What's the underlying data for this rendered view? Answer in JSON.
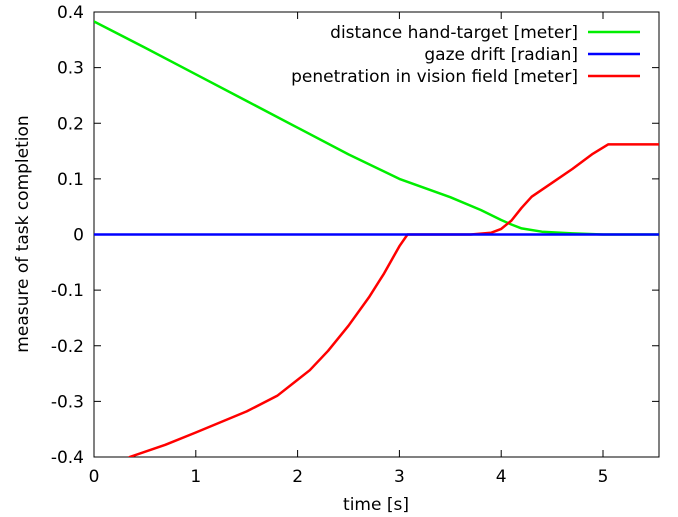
{
  "chart_data": {
    "type": "line",
    "title": "",
    "xlabel": "time [s]",
    "ylabel": "measure of task completion",
    "xlim": [
      0,
      5.55
    ],
    "ylim": [
      -0.4,
      0.4
    ],
    "xticks": [
      0,
      1,
      2,
      3,
      4,
      5
    ],
    "yticks": [
      -0.4,
      -0.3,
      -0.2,
      -0.1,
      0,
      0.1,
      0.2,
      0.3,
      0.4
    ],
    "xtick_labels": [
      "0",
      "1",
      "2",
      "3",
      "4",
      "5"
    ],
    "ytick_labels": [
      "-0.4",
      "-0.3",
      "-0.2",
      "-0.1",
      "0",
      "0.1",
      "0.2",
      "0.3",
      "0.4"
    ],
    "grid": false,
    "legend_position": "top-right",
    "series": [
      {
        "name": "distance hand-target [meter]",
        "color": "#00ee00",
        "points": [
          [
            0,
            0.383
          ],
          [
            0.5,
            0.336
          ],
          [
            1.0,
            0.288
          ],
          [
            1.5,
            0.24
          ],
          [
            2.0,
            0.192
          ],
          [
            2.5,
            0.144
          ],
          [
            3.0,
            0.1
          ],
          [
            3.5,
            0.067
          ],
          [
            3.8,
            0.044
          ],
          [
            4.0,
            0.026
          ],
          [
            4.1,
            0.018
          ],
          [
            4.2,
            0.011
          ],
          [
            4.4,
            0.005
          ],
          [
            4.7,
            0.002
          ],
          [
            5.0,
            0.0
          ],
          [
            5.55,
            0.0
          ]
        ]
      },
      {
        "name": "gaze drift [radian]",
        "color": "#0000ff",
        "points": [
          [
            0,
            0.0
          ],
          [
            5.55,
            0.0
          ]
        ]
      },
      {
        "name": "penetration in vision field [meter]",
        "color": "#ff0000",
        "points": [
          [
            0.35,
            -0.4
          ],
          [
            0.7,
            -0.378
          ],
          [
            1.0,
            -0.356
          ],
          [
            1.5,
            -0.318
          ],
          [
            1.8,
            -0.29
          ],
          [
            2.12,
            -0.244
          ],
          [
            2.3,
            -0.209
          ],
          [
            2.5,
            -0.164
          ],
          [
            2.7,
            -0.113
          ],
          [
            2.85,
            -0.07
          ],
          [
            3.0,
            -0.021
          ],
          [
            3.08,
            0.0
          ],
          [
            3.5,
            0.0
          ],
          [
            3.7,
            0.0
          ],
          [
            3.9,
            0.003
          ],
          [
            4.0,
            0.01
          ],
          [
            4.1,
            0.025
          ],
          [
            4.2,
            0.048
          ],
          [
            4.3,
            0.068
          ],
          [
            4.5,
            0.093
          ],
          [
            4.7,
            0.118
          ],
          [
            4.9,
            0.145
          ],
          [
            5.05,
            0.162
          ],
          [
            5.55,
            0.162
          ]
        ]
      }
    ]
  }
}
